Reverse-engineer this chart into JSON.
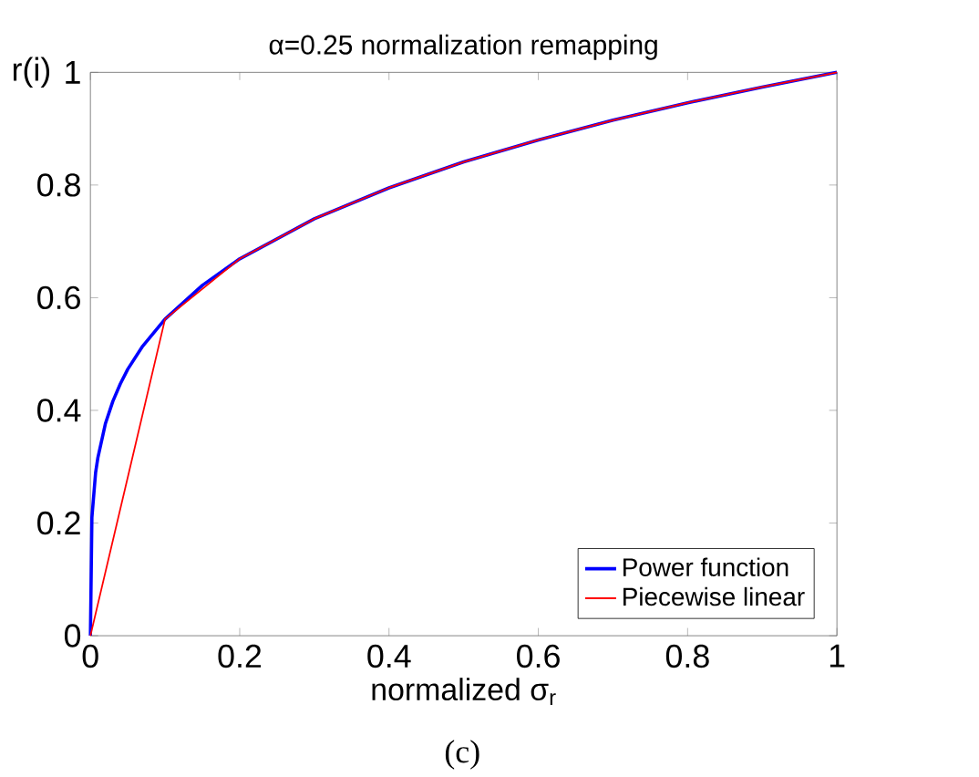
{
  "chart_data": {
    "type": "line",
    "title": "α=0.25 normalization remapping",
    "xlabel": "normalized σ$_{r}$",
    "ylabel": "r(i)",
    "annotations": [
      "(c)"
    ],
    "xlim": [
      0,
      1
    ],
    "ylim": [
      0,
      1
    ],
    "xticks": [
      0,
      0.2,
      0.4,
      0.6,
      0.8,
      1
    ],
    "yticks": [
      0,
      0.2,
      0.4,
      0.6,
      0.8,
      1
    ],
    "legend": "bottom right",
    "grid": false,
    "series": [
      {
        "name": "Power function",
        "color": "#0000ff",
        "x": [
          0,
          0.002,
          0.007,
          0.01,
          0.02,
          0.03,
          0.04,
          0.05,
          0.07,
          0.1,
          0.15,
          0.2,
          0.3,
          0.4,
          0.5,
          0.6,
          0.7,
          0.8,
          0.9,
          1
        ],
        "values": [
          0,
          0.21,
          0.29,
          0.316,
          0.376,
          0.416,
          0.447,
          0.473,
          0.514,
          0.562,
          0.622,
          0.669,
          0.74,
          0.795,
          0.841,
          0.88,
          0.915,
          0.946,
          0.974,
          1
        ]
      },
      {
        "name": "Piecewise linear",
        "color": "#ff0000",
        "x": [
          0,
          0.1,
          0.2,
          0.3,
          0.4,
          0.5,
          0.6,
          0.7,
          0.8,
          0.9,
          1
        ],
        "values": [
          0,
          0.562,
          0.669,
          0.74,
          0.795,
          0.841,
          0.88,
          0.915,
          0.946,
          0.974,
          1
        ]
      }
    ]
  }
}
